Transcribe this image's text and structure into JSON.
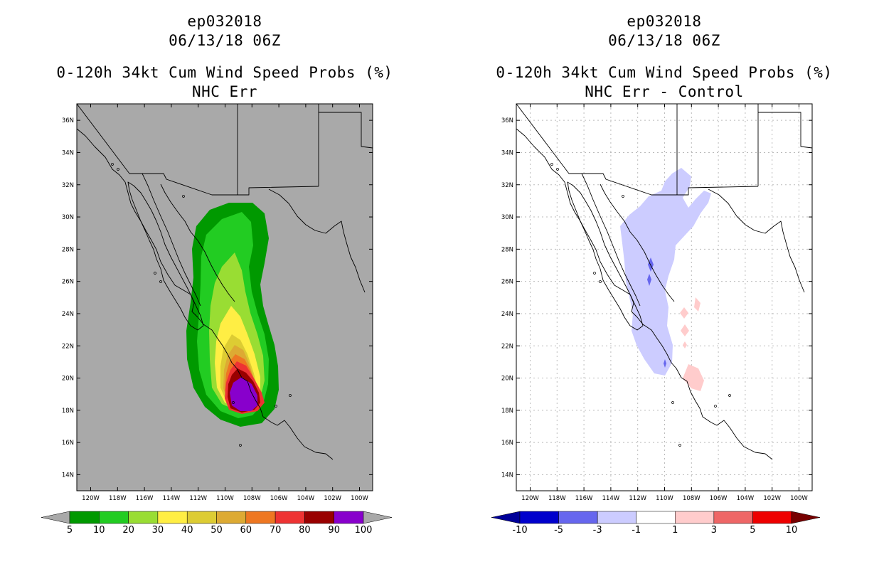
{
  "left_panel": {
    "title_line1": "ep032018",
    "title_line2": "06/13/18 06Z",
    "title_line3": "0-120h 34kt Cum Wind Speed Probs (%)",
    "title_line4": "NHC Err",
    "background_color": "#a9a9a9",
    "colorbar": {
      "colors": [
        "#009900",
        "#22cc22",
        "#99dd33",
        "#ffee44",
        "#ddcc33",
        "#ddaa33",
        "#ee7722",
        "#ee3333",
        "#990000",
        "#8800cc"
      ],
      "labels": [
        "5",
        "10",
        "20",
        "30",
        "40",
        "50",
        "60",
        "70",
        "80",
        "90",
        "100"
      ],
      "under_color": "#a9a9a9",
      "over_color": "#a9a9a9"
    }
  },
  "right_panel": {
    "title_line1": "ep032018",
    "title_line2": "06/13/18 06Z",
    "title_line3": "0-120h 34kt Cum Wind Speed Probs (%)",
    "title_line4": "NHC Err - Control",
    "background_color": "#ffffff",
    "colorbar": {
      "colors": [
        "#0000cc",
        "#6666ee",
        "#ccccff",
        "#ffffff",
        "#ffcccc",
        "#ee6666",
        "#ee0000"
      ],
      "labels": [
        "-10",
        "-5",
        "-3",
        "-1",
        "1",
        "3",
        "5",
        "10"
      ],
      "under_color": "#000099",
      "over_color": "#770000"
    }
  },
  "axes": {
    "lat_labels": [
      "36N",
      "34N",
      "32N",
      "30N",
      "28N",
      "26N",
      "24N",
      "22N",
      "20N",
      "18N",
      "16N",
      "14N"
    ],
    "lon_labels": [
      "120W",
      "118W",
      "116W",
      "114W",
      "112W",
      "110W",
      "108W",
      "106W",
      "104W",
      "102W",
      "100W"
    ]
  }
}
